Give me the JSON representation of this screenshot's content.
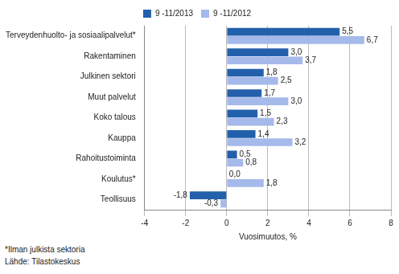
{
  "chart_data": {
    "type": "bar",
    "orientation": "horizontal",
    "categories": [
      "Terveydenhuolto- ja sosiaalipalvelut*",
      "Rakentaminen",
      "Julkinen sektori",
      "Muut palvelut",
      "Koko talous",
      "Kauppa",
      "Rahoitustoiminta",
      "Koulutus*",
      "Teollisuus"
    ],
    "series": [
      {
        "name": "9 -11/2013",
        "color": "#2360ac",
        "values": [
          5.5,
          3.0,
          1.8,
          1.7,
          1.5,
          1.4,
          0.5,
          0.0,
          -1.8
        ],
        "value_labels": [
          "5,5",
          "3,0",
          "1,8",
          "1,7",
          "1,5",
          "1,4",
          "0,5",
          "0,0",
          "-1,8"
        ]
      },
      {
        "name": "9 -11/2012",
        "color": "#a5b9ea",
        "values": [
          6.7,
          3.7,
          2.5,
          3.0,
          2.3,
          3.2,
          0.8,
          1.8,
          -0.3
        ],
        "value_labels": [
          "6,7",
          "3,7",
          "2,5",
          "3,0",
          "2,3",
          "3,2",
          "0,8",
          "1,8",
          "-0,3"
        ]
      }
    ],
    "x_label": "Vuosimuutos, %",
    "xlim": [
      -4,
      8
    ],
    "xticks": [
      -4,
      -2,
      0,
      2,
      4,
      6,
      8
    ],
    "grid": true,
    "legend": "top",
    "data_labels": true,
    "annotations": [
      "*Ilman julkista sektoria",
      "Lähde: Tilastokeskus"
    ]
  }
}
